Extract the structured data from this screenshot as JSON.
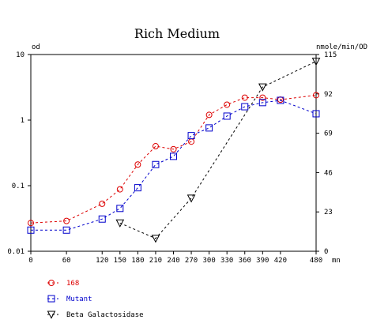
{
  "chart_data": {
    "type": "line",
    "title": "Rich Medium",
    "xlabel": "mn",
    "ylabel_left": "od",
    "ylabel_right": "nmole/min/OD",
    "x_ticks": [
      0,
      60,
      120,
      150,
      180,
      210,
      240,
      270,
      300,
      330,
      360,
      390,
      420,
      480
    ],
    "xlim": [
      0,
      480
    ],
    "y_left": {
      "scale": "log",
      "lim": [
        0.01,
        10
      ],
      "tick_values": [
        0.01,
        0.1,
        1,
        10
      ],
      "tick_labels": [
        "0.01",
        "0.1",
        "1",
        "10"
      ]
    },
    "y_right": {
      "scale": "linear",
      "lim": [
        0,
        115
      ],
      "tick_values": [
        0,
        23,
        46,
        69,
        92,
        115
      ]
    },
    "grid": false,
    "series": [
      {
        "name": "168",
        "axis": "left",
        "color": "#dd0000",
        "marker": "circle",
        "x": [
          0,
          60,
          120,
          150,
          180,
          210,
          240,
          270,
          300,
          330,
          360,
          390,
          420,
          480
        ],
        "y": [
          0.027,
          0.029,
          0.053,
          0.088,
          0.21,
          0.4,
          0.36,
          0.47,
          1.2,
          1.72,
          2.2,
          2.2,
          2.05,
          2.4
        ]
      },
      {
        "name": "Mutant",
        "axis": "left",
        "color": "#0000cc",
        "marker": "square",
        "x": [
          0,
          60,
          120,
          150,
          180,
          210,
          240,
          270,
          300,
          330,
          360,
          390,
          420,
          480
        ],
        "y": [
          0.021,
          0.021,
          0.031,
          0.045,
          0.093,
          0.21,
          0.28,
          0.58,
          0.76,
          1.15,
          1.6,
          1.85,
          2.0,
          1.25
        ]
      },
      {
        "name": "Beta Galactosidase",
        "axis": "right",
        "color": "#000000",
        "marker": "triangle-down",
        "x": [
          150,
          210,
          270,
          390,
          480
        ],
        "y": [
          16.5,
          7.5,
          31,
          96,
          111
        ]
      }
    ]
  }
}
